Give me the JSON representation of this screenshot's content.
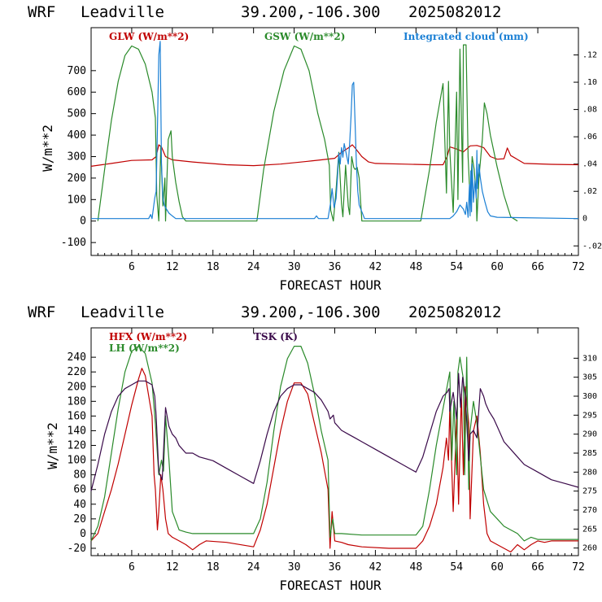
{
  "colors": {
    "red": "#c00000",
    "green": "#2a8a2a",
    "blue": "#1a7fd4",
    "purple": "#3a0a4a",
    "frame": "#000000"
  },
  "chart_data": [
    {
      "type": "line",
      "header": {
        "model": "WRF",
        "site": "Leadville",
        "coords": "39.200,-106.300",
        "init": "2025082012"
      },
      "xlabel": "FORECAST HOUR",
      "ylabel": "W/m**2",
      "xlim": [
        0,
        72
      ],
      "ylim": [
        -160,
        900
      ],
      "y2lim": [
        -0.027,
        0.14
      ],
      "xticks": [
        "6",
        "12",
        "18",
        "24",
        "30",
        "36",
        "42",
        "48",
        "54",
        "60",
        "66",
        "72"
      ],
      "yticks": [
        "700",
        "600",
        "500",
        "400",
        "300",
        "200",
        "100",
        "0",
        "-100"
      ],
      "y2ticks": [
        ".12",
        ".10",
        ".08",
        ".06",
        ".04",
        ".02",
        "0",
        "-.02"
      ],
      "series": [
        {
          "name": "GLW (W/m**2)",
          "axis": "left",
          "color": "red",
          "x": [
            0,
            3,
            6,
            9,
            9.6,
            10,
            10.4,
            11,
            12,
            15,
            20,
            24,
            28,
            32,
            34,
            36,
            37,
            38,
            38.6,
            39,
            40,
            41,
            42,
            46,
            50,
            52,
            52.6,
            53,
            54,
            55,
            56,
            57,
            58,
            59,
            60,
            61,
            61.5,
            62,
            64,
            68,
            72
          ],
          "y": [
            255,
            268,
            282,
            285,
            300,
            355,
            345,
            300,
            285,
            275,
            262,
            258,
            265,
            278,
            285,
            292,
            320,
            340,
            355,
            340,
            300,
            275,
            268,
            265,
            262,
            262,
            300,
            345,
            335,
            322,
            350,
            352,
            342,
            300,
            288,
            290,
            340,
            305,
            268,
            264,
            262
          ]
        },
        {
          "name": "GSW (W/m**2)",
          "axis": "left",
          "color": "green",
          "x": [
            1,
            2,
            3,
            4,
            5,
            6,
            7,
            8,
            9,
            9.5,
            9.7,
            10,
            10.3,
            10.6,
            10.9,
            11,
            11.4,
            11.8,
            12,
            12.5,
            13,
            13.5,
            14,
            24.5,
            25.5,
            27,
            28.5,
            30,
            31,
            32.2,
            33.5,
            34.5,
            35.2,
            35.4,
            35.8,
            36.2,
            36.6,
            37,
            37.2,
            37.6,
            38,
            38.2,
            38.5,
            38.8,
            39,
            39.3,
            39.6,
            40,
            48.7,
            50,
            51,
            52,
            52.5,
            52.8,
            53,
            53.5,
            54,
            54.2,
            54.5,
            54.9,
            55,
            55.4,
            55.7,
            56,
            56.3,
            56.6,
            56.9,
            57,
            57.3,
            57.8,
            58.1,
            58.5,
            59,
            60,
            61,
            62,
            63
          ],
          "y": [
            0,
            240,
            470,
            650,
            770,
            815,
            800,
            730,
            600,
            480,
            120,
            0,
            350,
            70,
            200,
            0,
            380,
            420,
            300,
            180,
            90,
            20,
            0,
            0,
            240,
            510,
            700,
            815,
            800,
            700,
            500,
            380,
            260,
            50,
            0,
            150,
            320,
            80,
            20,
            260,
            70,
            30,
            300,
            250,
            240,
            250,
            200,
            0,
            0,
            240,
            460,
            640,
            130,
            650,
            330,
            40,
            600,
            100,
            800,
            180,
            820,
            820,
            300,
            100,
            300,
            240,
            120,
            0,
            200,
            380,
            550,
            500,
            400,
            250,
            120,
            20,
            0
          ]
        },
        {
          "name": "Integrated cloud (mm)",
          "axis": "right",
          "color": "blue",
          "x": [
            0,
            8.5,
            8.8,
            9,
            9.4,
            9.6,
            9.8,
            10,
            10.2,
            10.4,
            10.6,
            10.8,
            11,
            11.5,
            12,
            12.5,
            13,
            13.5,
            33,
            33.3,
            33.6,
            34,
            35,
            35.4,
            35.6,
            35.9,
            36.2,
            36.4,
            36.6,
            36.8,
            37,
            37.2,
            37.4,
            37.6,
            37.8,
            38,
            38.2,
            38.4,
            38.6,
            38.8,
            39,
            39.2,
            39.4,
            39.6,
            40,
            40.4,
            53,
            53.5,
            54,
            54.5,
            55,
            55.3,
            55.5,
            55.7,
            55.9,
            56,
            56.1,
            56.2,
            56.3,
            56.5,
            56.7,
            56.9,
            57,
            57.1,
            57.3,
            57.5,
            57.8,
            58.2,
            58.6,
            59,
            60,
            72
          ],
          "y": [
            0,
            0,
            0.003,
            0,
            0.015,
            0.02,
            0.065,
            0.12,
            0.13,
            0.04,
            0.015,
            0.01,
            0.008,
            0.004,
            0.002,
            0,
            0,
            0,
            0,
            0.002,
            0,
            0,
            0,
            0.012,
            0.022,
            0.008,
            0.015,
            0.03,
            0.048,
            0.04,
            0.052,
            0.045,
            0.055,
            0.05,
            0.045,
            0.04,
            0.055,
            0.075,
            0.098,
            0.1,
            0.07,
            0.04,
            0.02,
            0.01,
            0.005,
            0,
            0,
            0.002,
            0.005,
            0.01,
            0.007,
            0.003,
            0.012,
            0.001,
            0.025,
            0.002,
            0.035,
            0.005,
            0.04,
            0.012,
            0.028,
            0.015,
            0.05,
            0.022,
            0.04,
            0.03,
            0.02,
            0.012,
            0.005,
            0.002,
            0.001,
            0
          ]
        }
      ]
    },
    {
      "type": "line",
      "header": {
        "model": "WRF",
        "site": "Leadville",
        "coords": "39.200,-106.300",
        "init": "2025082012"
      },
      "xlabel": "FORECAST HOUR",
      "ylabel": "W/m**2",
      "xlim": [
        0,
        72
      ],
      "ylim": [
        -30,
        280
      ],
      "y2lim": [
        258,
        318
      ],
      "xticks": [
        "6",
        "12",
        "18",
        "24",
        "30",
        "36",
        "42",
        "48",
        "54",
        "60",
        "66",
        "72"
      ],
      "yticks": [
        "240",
        "220",
        "200",
        "180",
        "160",
        "140",
        "120",
        "100",
        "80",
        "60",
        "40",
        "20",
        "0",
        "-20"
      ],
      "y2ticks": [
        "310",
        "305",
        "300",
        "295",
        "290",
        "285",
        "280",
        "275",
        "270",
        "265",
        "260"
      ],
      "series": [
        {
          "name": "HFX (W/m**2)",
          "axis": "left",
          "color": "red",
          "x": [
            0,
            1,
            2,
            3,
            4,
            5,
            6,
            7,
            7.5,
            8,
            9,
            9.3,
            9.5,
            9.8,
            10,
            10.3,
            10.6,
            11,
            11.4,
            12,
            13,
            14,
            15,
            16,
            17,
            20,
            24,
            25,
            26,
            27,
            28,
            29,
            30,
            31,
            32,
            33,
            34,
            35,
            35.3,
            35.6,
            36,
            37,
            38,
            40,
            44,
            48,
            49,
            50,
            51,
            52,
            52.5,
            52.8,
            53,
            53.5,
            54,
            54.3,
            54.7,
            55,
            55.3,
            55.8,
            56,
            56.5,
            57,
            57.5,
            58,
            58.5,
            59,
            60,
            61,
            62,
            63,
            64,
            65,
            66,
            67,
            68,
            72
          ],
          "y": [
            -10,
            0,
            30,
            60,
            95,
            135,
            175,
            210,
            225,
            215,
            160,
            80,
            60,
            5,
            30,
            80,
            60,
            20,
            0,
            -5,
            -10,
            -15,
            -22,
            -15,
            -10,
            -12,
            -18,
            5,
            40,
            90,
            140,
            180,
            205,
            205,
            190,
            150,
            110,
            60,
            -20,
            30,
            -10,
            -12,
            -15,
            -18,
            -20,
            -20,
            -10,
            10,
            40,
            90,
            130,
            100,
            170,
            30,
            160,
            40,
            190,
            80,
            200,
            150,
            20,
            140,
            160,
            110,
            40,
            0,
            -10,
            -15,
            -20,
            -25,
            -15,
            -22,
            -15,
            -10,
            -12,
            -10,
            -10
          ]
        },
        {
          "name": "LH (W/m**2)",
          "axis": "left",
          "color": "green",
          "x": [
            0,
            1,
            2,
            3,
            4,
            5,
            6,
            7,
            8,
            9,
            9.5,
            10,
            10.4,
            10.7,
            11,
            11.5,
            12,
            13,
            14,
            15,
            20,
            24,
            25,
            26,
            27,
            28,
            29,
            30,
            31,
            32,
            33,
            34,
            35,
            35.3,
            35.7,
            36,
            37,
            40,
            48,
            49,
            50,
            51,
            52,
            53,
            53.3,
            53.6,
            54,
            54.2,
            54.5,
            55,
            55.2,
            55.5,
            55.8,
            56,
            56.5,
            57,
            58,
            59,
            60,
            61,
            62,
            63,
            64,
            65,
            66,
            67,
            68,
            72
          ],
          "y": [
            -10,
            10,
            50,
            110,
            170,
            220,
            248,
            255,
            245,
            205,
            150,
            80,
            100,
            85,
            160,
            100,
            30,
            5,
            2,
            0,
            0,
            0,
            20,
            70,
            140,
            200,
            238,
            255,
            255,
            232,
            190,
            140,
            100,
            -5,
            20,
            0,
            0,
            -2,
            -2,
            10,
            60,
            120,
            170,
            220,
            100,
            180,
            80,
            220,
            240,
            210,
            80,
            240,
            60,
            140,
            180,
            150,
            60,
            30,
            20,
            10,
            5,
            0,
            -10,
            -5,
            -8,
            -8,
            -8,
            -8
          ]
        },
        {
          "name": "TSK (K)",
          "axis": "right",
          "color": "purple",
          "x": [
            0,
            1,
            2,
            3,
            4,
            5,
            6,
            7,
            7.5,
            8,
            9,
            9.4,
            9.6,
            10,
            10.5,
            11,
            11.5,
            12,
            12.5,
            13,
            14,
            15,
            16,
            18,
            20,
            22,
            24,
            25,
            26,
            27,
            28,
            29,
            30,
            31,
            32,
            33,
            34,
            35,
            35.3,
            35.8,
            36,
            37,
            38,
            39,
            40,
            42,
            44,
            46,
            48,
            49,
            50,
            51,
            52,
            52.6,
            52.9,
            53,
            53.5,
            54,
            54.3,
            54.6,
            54.9,
            55.3,
            55.8,
            56,
            56.5,
            57,
            57.5,
            58,
            58.3,
            58.8,
            59.5,
            60,
            61,
            62,
            63,
            64,
            66,
            68,
            70,
            72
          ],
          "y": [
            275,
            282,
            290,
            296,
            300,
            302,
            303,
            304,
            304,
            304,
            303,
            300,
            295,
            280,
            278,
            297,
            292,
            290,
            289,
            287,
            285,
            285,
            284,
            283,
            281,
            279,
            277,
            283,
            290,
            296,
            300,
            302,
            303,
            303,
            302,
            301,
            299,
            296,
            294,
            295,
            293,
            291,
            290,
            289,
            288,
            286,
            284,
            282,
            280,
            284,
            290,
            296,
            300,
            301,
            302,
            296,
            301,
            294,
            306,
            297,
            305,
            300,
            283,
            290,
            291,
            289,
            302,
            300,
            298,
            296,
            294,
            292,
            288,
            286,
            284,
            282,
            280,
            278,
            277,
            276
          ]
        }
      ]
    }
  ]
}
